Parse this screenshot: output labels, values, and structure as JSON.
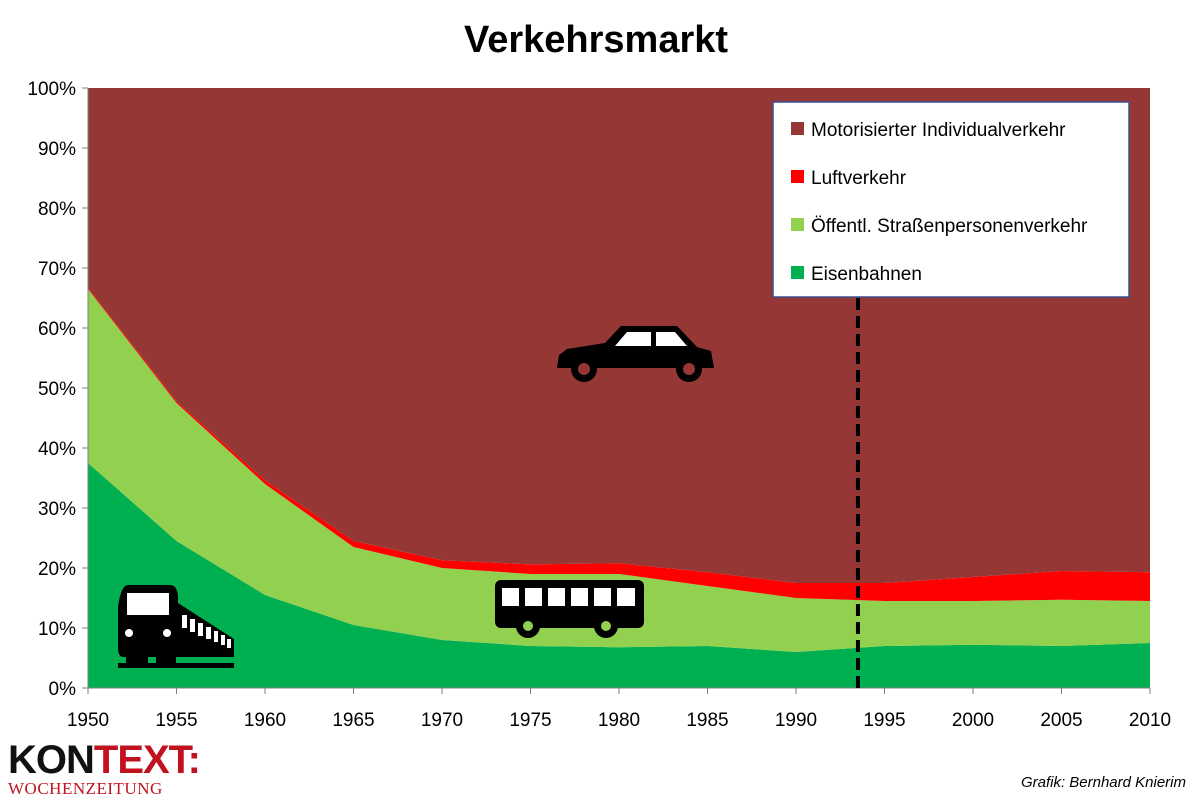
{
  "chart_data": {
    "type": "area",
    "stacked": true,
    "percent": true,
    "title": "Verkehrsmarkt",
    "x": [
      1950,
      1955,
      1960,
      1965,
      1970,
      1975,
      1980,
      1985,
      1990,
      1995,
      2000,
      2005,
      2010
    ],
    "x_tick_labels": [
      "1950",
      "1955",
      "1960",
      "1965",
      "1970",
      "1975",
      "1980",
      "1985",
      "1990",
      "1995",
      "2000",
      "2005",
      "2010"
    ],
    "y_tick_labels": [
      "0%",
      "10%",
      "20%",
      "30%",
      "40%",
      "50%",
      "60%",
      "70%",
      "80%",
      "90%",
      "100%"
    ],
    "ylim": [
      0,
      100
    ],
    "series": [
      {
        "name": "Eisenbahnen",
        "color": "#00b050",
        "values": [
          37.5,
          24.5,
          15.5,
          10.5,
          8.0,
          7.0,
          6.8,
          7.0,
          6.0,
          7.0,
          7.2,
          7.0,
          7.5
        ]
      },
      {
        "name": "Öffentl. Straßenpersonenverkehr",
        "color": "#92d050",
        "values": [
          29.0,
          23.0,
          18.5,
          13.0,
          12.0,
          12.0,
          12.2,
          10.0,
          9.0,
          7.5,
          7.3,
          7.7,
          7.0
        ]
      },
      {
        "name": "Luftverkehr",
        "color": "#ff0000",
        "values": [
          0.2,
          0.3,
          0.6,
          1.0,
          1.3,
          1.6,
          1.8,
          2.3,
          2.5,
          3.0,
          4.0,
          4.8,
          4.8
        ]
      },
      {
        "name": "Motorisierter Individualverkehr",
        "color": "#953735",
        "values": [
          33.3,
          52.2,
          65.4,
          75.5,
          78.7,
          79.4,
          79.2,
          80.7,
          82.5,
          82.5,
          81.5,
          80.5,
          80.7
        ]
      }
    ],
    "legend": {
      "placement": "top-right",
      "order": [
        "Motorisierter Individualverkehr",
        "Luftverkehr",
        "Öffentl. Straßenpersonenverkehr",
        "Eisenbahnen"
      ]
    },
    "marker_line": {
      "x": 1993.5,
      "style": "dashed"
    },
    "icons": [
      "train-icon",
      "bus-icon",
      "car-icon"
    ]
  },
  "branding": {
    "logo_main_a": "KON",
    "logo_main_b": "TEXT:",
    "logo_sub": "WOCHENZEITUNG",
    "credit": "Grafik: Bernhard Knierim"
  }
}
